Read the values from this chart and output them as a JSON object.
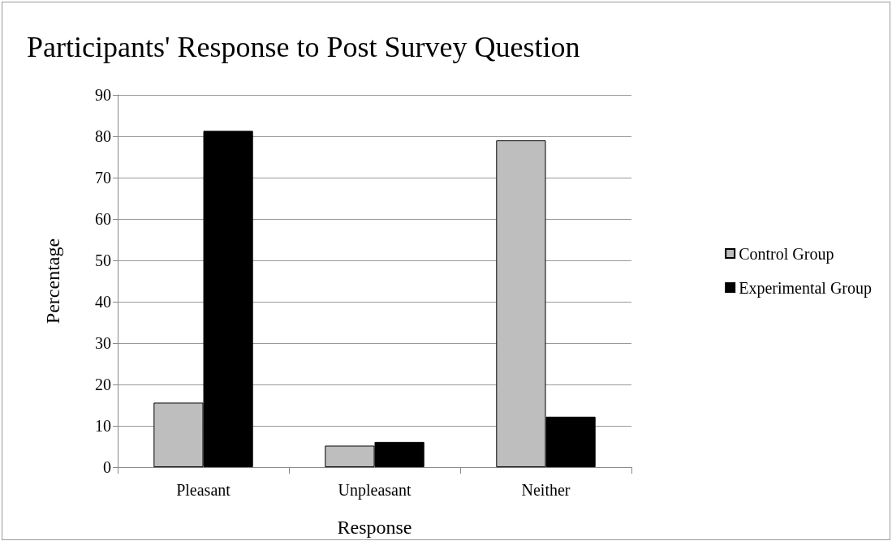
{
  "chart_data": {
    "type": "bar",
    "title": "Participants' Response to Post Survey Question",
    "xlabel": "Response",
    "ylabel": "Percentage",
    "categories": [
      "Pleasant",
      "Unpleasant",
      "Neither"
    ],
    "series": [
      {
        "name": "Control Group",
        "color": "#bebebe",
        "values": [
          15.6,
          5.2,
          79.0
        ]
      },
      {
        "name": "Experimental Group",
        "color": "#000000",
        "values": [
          81.3,
          6.1,
          12.2
        ]
      }
    ],
    "ylim": [
      0,
      90
    ],
    "yticks": [
      0,
      10,
      20,
      30,
      40,
      50,
      60,
      70,
      80,
      90
    ],
    "grid": "y",
    "legend": "right"
  }
}
